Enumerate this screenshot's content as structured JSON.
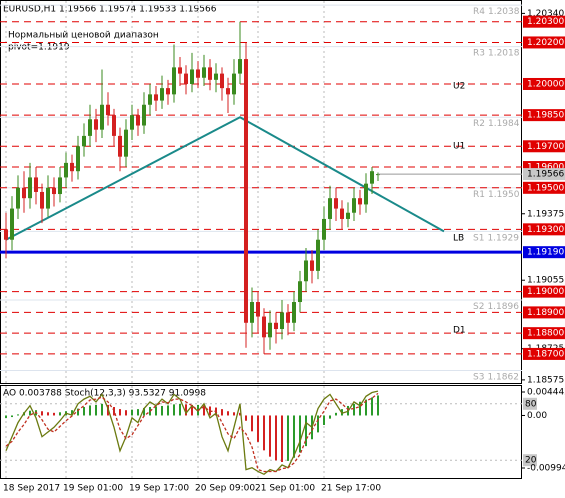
{
  "chart_data": [
    {
      "type": "candlestick",
      "title": "EURUSD,H1  1.19566 1.19574 1.19533 1.19566",
      "subtitle": "Нормальный ценовой диапазон",
      "pivot_label": "pivot=1.1919",
      "categories": [
        "18 Sep 2017",
        null,
        null,
        null,
        null,
        null,
        null,
        null,
        null,
        null,
        "19 Sep 01:00",
        null,
        null,
        null,
        null,
        null,
        null,
        null,
        null,
        null,
        null,
        "19 Sep 17:00",
        null,
        null,
        null,
        null,
        null,
        null,
        null,
        null,
        null,
        null,
        "20 Sep 09:00",
        null,
        null,
        null,
        null,
        null,
        null,
        null,
        null,
        null,
        "21 Sep 01:00",
        null,
        null,
        null,
        null,
        null,
        null,
        null,
        null,
        null,
        null,
        "21 Sep 17:00",
        null,
        null,
        null,
        null,
        null,
        null,
        null,
        null,
        null
      ],
      "open": [
        1.193,
        1.1925,
        1.194,
        1.195,
        1.1945,
        1.1955,
        1.1948,
        1.194,
        1.195,
        1.1947,
        1.1955,
        1.1962,
        1.1958,
        1.197,
        1.1975,
        1.1983,
        1.1978,
        1.199,
        1.1985,
        1.1975,
        1.1965,
        1.1978,
        1.1985,
        1.198,
        1.199,
        1.1995,
        1.1992,
        1.1998,
        1.1995,
        1.2008,
        1.2005,
        1.2,
        1.2007,
        1.2003,
        1.2008,
        1.2002,
        1.2005,
        1.1998,
        1.1995,
        1.2005,
        1.2012,
        1.1885,
        1.1895,
        1.1888,
        1.1878,
        1.1885,
        1.1882,
        1.189,
        1.1885,
        1.1895,
        1.1905,
        1.1915,
        1.191,
        1.1925,
        1.1935,
        1.1945,
        1.194,
        1.1935,
        1.1938,
        1.1945,
        1.1942,
        1.1952,
        1.19566
      ],
      "high": [
        1.1938,
        1.1946,
        1.1956,
        1.1958,
        1.1962,
        1.196,
        1.1952,
        1.1956,
        1.1955,
        1.196,
        1.1967,
        1.1966,
        1.1975,
        1.1981,
        1.199,
        1.1988,
        1.2007,
        1.1996,
        1.1988,
        1.1979,
        1.1983,
        1.199,
        1.1988,
        1.1996,
        1.2,
        1.1999,
        1.2004,
        1.2002,
        1.2019,
        1.2013,
        1.2009,
        1.2015,
        1.2011,
        1.2014,
        1.2012,
        1.201,
        1.2008,
        1.2003,
        1.2012,
        1.203,
        1.202,
        1.1902,
        1.19,
        1.1892,
        1.1891,
        1.189,
        1.1896,
        1.1894,
        1.19,
        1.191,
        1.1921,
        1.192,
        1.193,
        1.1941,
        1.1951,
        1.195,
        1.1944,
        1.1943,
        1.195,
        1.1949,
        1.1957,
        1.196,
        1.19574
      ],
      "low": [
        1.1916,
        1.192,
        1.1935,
        1.1938,
        1.194,
        1.1942,
        1.1933,
        1.1936,
        1.1941,
        1.1943,
        1.195,
        1.1953,
        1.1954,
        1.1965,
        1.197,
        1.1972,
        1.1974,
        1.198,
        1.197,
        1.1958,
        1.196,
        1.1973,
        1.1975,
        1.1976,
        1.1985,
        1.1987,
        1.1988,
        1.199,
        1.1991,
        1.1999,
        1.1995,
        1.1996,
        1.1998,
        1.1999,
        1.1997,
        1.1996,
        1.1992,
        1.1986,
        1.199,
        1.2,
        1.1873,
        1.1878,
        1.188,
        1.187,
        1.1872,
        1.1875,
        1.1877,
        1.1879,
        1.1881,
        1.189,
        1.19,
        1.1904,
        1.1906,
        1.192,
        1.193,
        1.1934,
        1.193,
        1.1931,
        1.1934,
        1.1937,
        1.1938,
        1.1947,
        1.19533
      ],
      "close": [
        1.1925,
        1.194,
        1.195,
        1.1945,
        1.1955,
        1.1948,
        1.194,
        1.195,
        1.1947,
        1.1955,
        1.1962,
        1.1958,
        1.197,
        1.1975,
        1.1983,
        1.1978,
        1.199,
        1.1985,
        1.1975,
        1.1965,
        1.1978,
        1.1985,
        1.198,
        1.199,
        1.1995,
        1.1992,
        1.1998,
        1.1995,
        1.2008,
        1.2005,
        1.2,
        1.2007,
        1.2003,
        1.2008,
        1.2002,
        1.2005,
        1.1998,
        1.1995,
        1.2005,
        1.2012,
        1.1885,
        1.1895,
        1.1888,
        1.1878,
        1.1885,
        1.1882,
        1.189,
        1.1885,
        1.1895,
        1.1905,
        1.1915,
        1.191,
        1.1925,
        1.1935,
        1.1945,
        1.194,
        1.1935,
        1.1938,
        1.1945,
        1.1942,
        1.1952,
        1.1958,
        1.19566
      ],
      "up_color": "#3a8a1e",
      "down_color": "#d42020",
      "ylim": [
        1.1856,
        1.2039
      ],
      "yticks": [
        {
          "value": 1.2034,
          "label": "1.20340"
        },
        {
          "value": 1.19375,
          "label": "1.19375"
        },
        {
          "value": 1.19055,
          "label": "1.19055"
        },
        {
          "value": 1.18725,
          "label": "1.18725"
        },
        {
          "value": 1.18575,
          "label": "1.18575"
        }
      ],
      "levels": [
        {
          "value": 1.203,
          "label": "1.20300"
        },
        {
          "value": 1.202,
          "label": "1.20200"
        },
        {
          "value": 1.2,
          "label": "1.20000"
        },
        {
          "value": 1.1985,
          "label": "1.19850"
        },
        {
          "value": 1.197,
          "label": "1.19700"
        },
        {
          "value": 1.196,
          "label": "1.19600"
        },
        {
          "value": 1.195,
          "label": "1.19500"
        },
        {
          "value": 1.193,
          "label": "1.19300"
        },
        {
          "value": 1.19,
          "label": "1.19000"
        },
        {
          "value": 1.189,
          "label": "1.18900"
        },
        {
          "value": 1.188,
          "label": "1.18800"
        },
        {
          "value": 1.187,
          "label": "1.18700"
        }
      ],
      "level_color": "#e00000",
      "pivot": {
        "value": 1.1919,
        "label": "1.19190"
      },
      "pivot_color": "#0000e0",
      "last_price": 1.19566,
      "pivot_points": [
        {
          "name": "R4",
          "value": 1.2038,
          "label": "1.2038"
        },
        {
          "name": "R3",
          "value": 1.2018,
          "label": "1.2018"
        },
        {
          "name": "R2",
          "value": 1.1984,
          "label": "1.1984"
        },
        {
          "name": "R1",
          "value": 1.195,
          "label": "1.1950"
        },
        {
          "name": "S1",
          "value": 1.1929,
          "label": "1.1929"
        },
        {
          "name": "S2",
          "value": 1.1896,
          "label": "1.1896"
        },
        {
          "name": "S3",
          "value": 1.1862,
          "label": "1.1862"
        }
      ],
      "zones": [
        "U2",
        "U1",
        "LB",
        "D1"
      ],
      "trend": {
        "x": [
          0,
          39,
          73
        ],
        "values": [
          1.1925,
          1.1984,
          1.1929
        ],
        "color": "#1a8a8a"
      }
    },
    {
      "type": "oscillator",
      "title": "AO 0.003788  Stoch(12,3,3) 93.5327 91.0998",
      "series": [
        {
          "kind": "bar",
          "values": [
            -0.0005,
            -0.0003,
            0.0002,
            0.0006,
            0.0009,
            0.001,
            0.0008,
            0.0006,
            0.0005,
            0.0006,
            0.0008,
            0.001,
            0.0013,
            0.0016,
            0.0019,
            0.002,
            0.0022,
            0.002,
            0.0016,
            0.0012,
            0.001,
            0.0011,
            0.0012,
            0.0014,
            0.0016,
            0.0017,
            0.0018,
            0.0019,
            0.0021,
            0.0022,
            0.0021,
            0.002,
            0.002,
            0.0019,
            0.0017,
            0.0015,
            0.0012,
            0.0008,
            0.0006,
            0.0005,
            -0.001,
            -0.003,
            -0.005,
            -0.0066,
            -0.0078,
            -0.0085,
            -0.0088,
            -0.0086,
            -0.008,
            -0.007,
            -0.0058,
            -0.0045,
            -0.0032,
            -0.0018,
            -0.0006,
            0.0005,
            0.0012,
            0.0018,
            0.0022,
            0.0026,
            0.003,
            0.0034,
            0.003788
          ],
          "color": "#2a9a2a"
        },
        {
          "kind": "line",
          "axis": "y2",
          "color": "#6b7a10",
          "values": [
            30,
            45,
            60,
            70,
            78,
            65,
            45,
            50,
            55,
            62,
            70,
            68,
            80,
            85,
            88,
            82,
            90,
            75,
            55,
            30,
            45,
            65,
            60,
            75,
            82,
            78,
            85,
            80,
            90,
            85,
            70,
            78,
            72,
            80,
            65,
            70,
            45,
            30,
            55,
            80,
            10,
            12,
            8,
            5,
            10,
            8,
            15,
            12,
            25,
            40,
            60,
            55,
            75,
            85,
            90,
            80,
            70,
            72,
            82,
            78,
            88,
            92,
            93.5327
          ]
        },
        {
          "kind": "line",
          "axis": "y2",
          "color": "#c03020",
          "values": [
            35,
            40,
            50,
            58,
            68,
            71,
            63,
            53,
            50,
            56,
            62,
            67,
            73,
            78,
            84,
            85,
            87,
            82,
            73,
            53,
            43,
            47,
            57,
            67,
            72,
            78,
            82,
            81,
            85,
            85,
            82,
            78,
            73,
            77,
            72,
            72,
            60,
            48,
            43,
            55,
            48,
            34,
            10,
            8,
            8,
            8,
            11,
            12,
            17,
            26,
            42,
            52,
            63,
            72,
            83,
            85,
            80,
            74,
            75,
            77,
            83,
            86,
            91.0998
          ]
        }
      ],
      "down_color": "#d42020",
      "ylim": [
        -0.009941,
        0.004442
      ],
      "yticks": [
        0.004442,
        {
          "value": 0,
          "label": "0.00"
        },
        -0.009941
      ],
      "y2lim": [
        0,
        100
      ],
      "y2ticks": [
        20,
        80
      ]
    }
  ]
}
